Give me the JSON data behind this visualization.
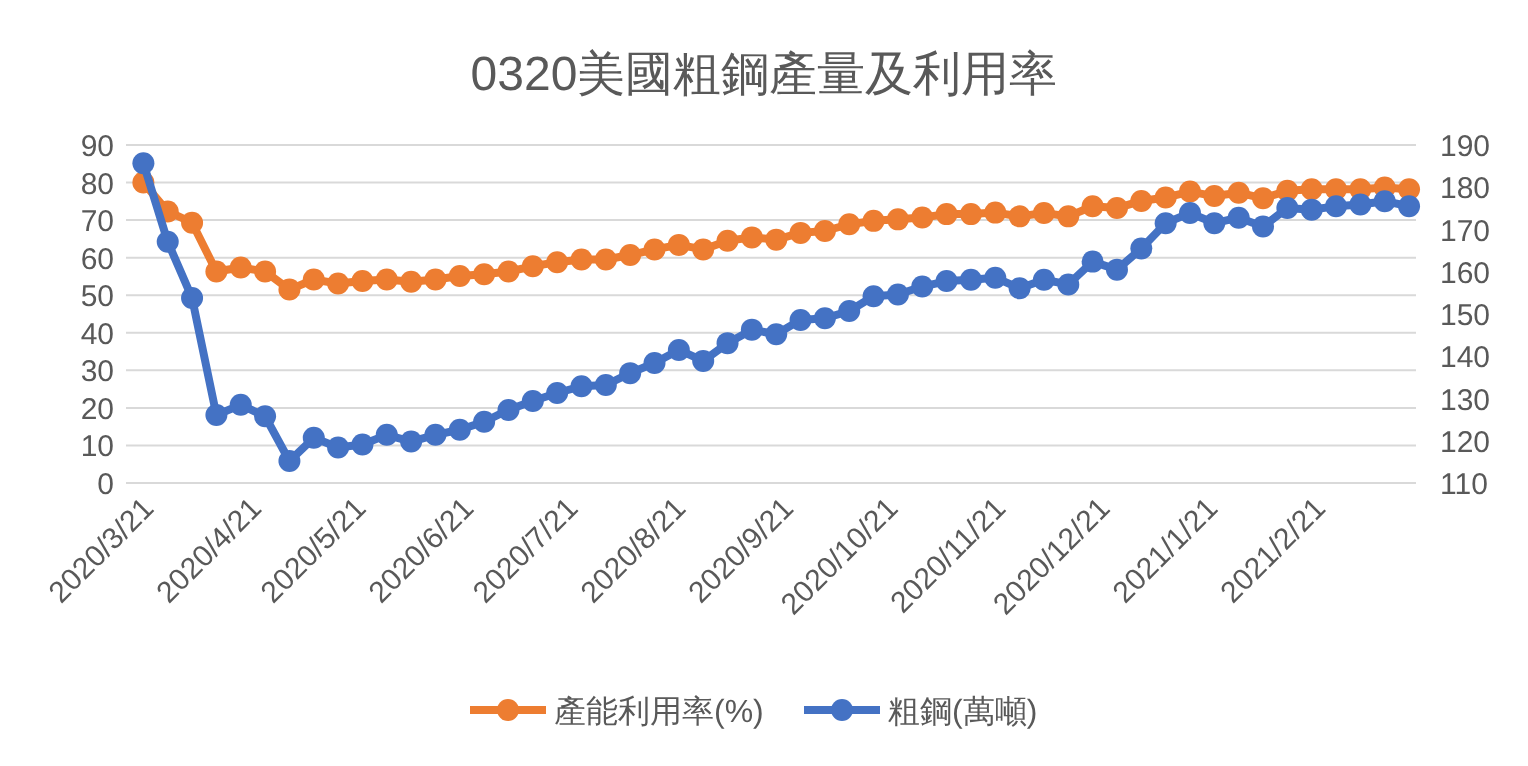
{
  "chart_data": {
    "type": "line",
    "title": "0320美國粗鋼產量及利用率",
    "x": [
      "2020-03-21",
      "2020-03-28",
      "2020-04-04",
      "2020-04-11",
      "2020-04-18",
      "2020-04-25",
      "2020-05-02",
      "2020-05-09",
      "2020-05-16",
      "2020-05-23",
      "2020-05-30",
      "2020-06-06",
      "2020-06-13",
      "2020-06-20",
      "2020-06-27",
      "2020-07-04",
      "2020-07-11",
      "2020-07-18",
      "2020-07-25",
      "2020-08-01",
      "2020-08-08",
      "2020-08-15",
      "2020-08-22",
      "2020-08-29",
      "2020-09-05",
      "2020-09-12",
      "2020-09-19",
      "2020-09-26",
      "2020-10-03",
      "2020-10-10",
      "2020-10-17",
      "2020-10-24",
      "2020-10-31",
      "2020-11-07",
      "2020-11-14",
      "2020-11-21",
      "2020-11-28",
      "2020-12-05",
      "2020-12-12",
      "2020-12-19",
      "2020-12-26",
      "2021-01-02",
      "2021-01-09",
      "2021-01-16",
      "2021-01-23",
      "2021-01-30",
      "2021-02-06",
      "2021-02-13",
      "2021-02-20",
      "2021-02-27",
      "2021-03-06",
      "2021-03-13",
      "2021-03-20"
    ],
    "series": [
      {
        "name": "產能利用率(%)",
        "color": "#ed7d31",
        "values": [
          80,
          72.3,
          69.3,
          56.3,
          57.4,
          56.3,
          51.5,
          54.2,
          53.1,
          53.8,
          54.2,
          53.6,
          54.2,
          55.1,
          55.6,
          56.3,
          57.7,
          58.8,
          59.5,
          59.5,
          60.7,
          62.2,
          63.4,
          62.2,
          64.5,
          65.4,
          64.8,
          66.6,
          67.1,
          68.9,
          69.8,
          70.2,
          70.7,
          71.6,
          71.6,
          72,
          71,
          71.9,
          71,
          73.7,
          73.2,
          75.1,
          76,
          77.6,
          76.4,
          77.3,
          75.8,
          77.8,
          78.2,
          78.2,
          78.2,
          78.7,
          78.2
        ]
      },
      {
        "name": "粗鋼(萬噸)",
        "color": "#4472c4",
        "axis": "y2",
        "values": [
          185.7,
          167.1,
          153.8,
          126.1,
          128.5,
          125.8,
          115.2,
          120.7,
          118.4,
          119.1,
          121.4,
          119.8,
          121.4,
          122.6,
          124.5,
          127.3,
          129.4,
          131.3,
          132.9,
          133.2,
          136,
          138.4,
          141.5,
          138.9,
          143.1,
          146.3,
          145.2,
          148.6,
          149,
          150.7,
          154.2,
          154.6,
          156.5,
          157.8,
          158.1,
          158.6,
          156.1,
          158.1,
          157,
          162.4,
          160.5,
          165.5,
          171.5,
          173.9,
          171.5,
          172.8,
          170.7,
          175.1,
          174.7,
          175.5,
          175.9,
          176.7,
          175.5
        ]
      }
    ],
    "xlim": [
      "2020-03-16",
      "2021-03-22"
    ],
    "xticks": [
      {
        "value": "2020-03-21",
        "label": "2020/3/21"
      },
      {
        "value": "2020-04-21",
        "label": "2020/4/21"
      },
      {
        "value": "2020-05-21",
        "label": "2020/5/21"
      },
      {
        "value": "2020-06-21",
        "label": "2020/6/21"
      },
      {
        "value": "2020-07-21",
        "label": "2020/7/21"
      },
      {
        "value": "2020-08-21",
        "label": "2020/8/21"
      },
      {
        "value": "2020-09-21",
        "label": "2020/9/21"
      },
      {
        "value": "2020-10-21",
        "label": "2020/10/21"
      },
      {
        "value": "2020-11-21",
        "label": "2020/11/21"
      },
      {
        "value": "2020-12-21",
        "label": "2020/12/21"
      },
      {
        "value": "2021-01-21",
        "label": "2021/1/21"
      },
      {
        "value": "2021-02-21",
        "label": "2021/2/21"
      }
    ],
    "ylim": [
      0,
      90
    ],
    "yticks": [
      0,
      10,
      20,
      30,
      40,
      50,
      60,
      70,
      80,
      90
    ],
    "y2lim": [
      110,
      190
    ],
    "y2ticks": [
      110,
      120,
      130,
      140,
      150,
      160,
      170,
      180,
      190
    ],
    "grid": "y",
    "legend": "bottom",
    "marker": "circle",
    "line_style": "solid"
  }
}
